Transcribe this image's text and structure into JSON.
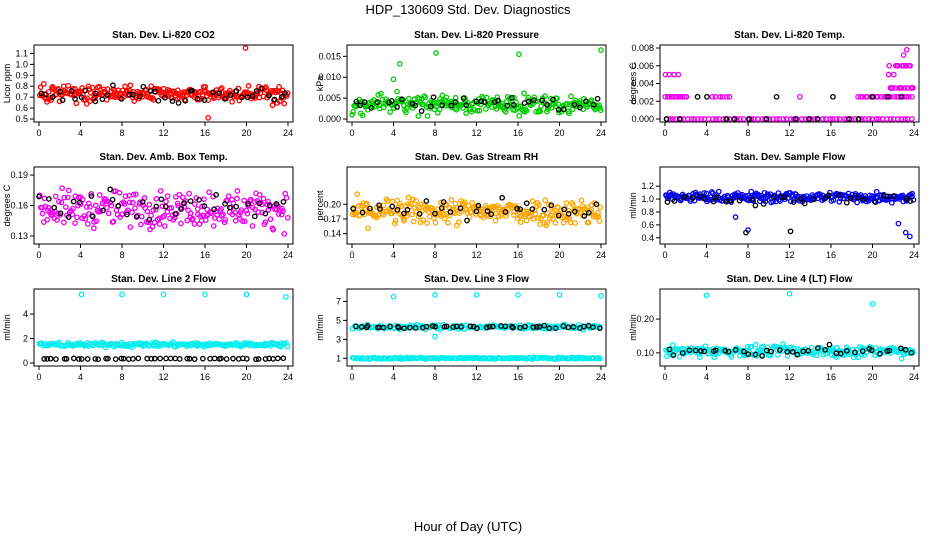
{
  "page": {
    "title": "HDP_130609  Std. Dev. Diagnostics",
    "xlabel": "Hour of Day (UTC)"
  },
  "chart_data": [
    {
      "type": "scatter",
      "title": "Stan. Dev. Li-820 CO2",
      "ylabel": "Licor ppm",
      "xlim": [
        0,
        24
      ],
      "ylim": [
        0.5,
        1.15
      ],
      "xticks": [
        "0",
        "4",
        "8",
        "12",
        "16",
        "20",
        "24"
      ],
      "yticks": [
        {
          "v": 0.5,
          "label": "0.5"
        },
        {
          "v": 0.6,
          "label": "0.6"
        },
        {
          "v": 0.7,
          "label": "0.7"
        },
        {
          "v": 0.8,
          "label": "0.8"
        },
        {
          "v": 0.9,
          "label": "0.9"
        },
        {
          "v": 1.0,
          "label": "1.0"
        },
        {
          "v": 1.1,
          "label": "1.1"
        }
      ],
      "series": [
        {
          "name": "primary",
          "color": "#ff0000",
          "count": 260,
          "y_mean": 0.73,
          "y_spread": 0.13,
          "outliers": [
            {
              "x": 19.9,
              "y": 1.15
            },
            {
              "x": 16.3,
              "y": 0.51
            }
          ]
        },
        {
          "name": "secondary",
          "color": "#000000",
          "count": 44,
          "y_mean": 0.72,
          "y_spread": 0.12,
          "outliers": []
        }
      ]
    },
    {
      "type": "scatter",
      "title": "Stan. Dev. Li-820 Pressure",
      "ylabel": "kPa",
      "xlim": [
        0,
        24
      ],
      "ylim": [
        0,
        0.017
      ],
      "xticks": [
        "0",
        "4",
        "8",
        "12",
        "16",
        "20",
        "24"
      ],
      "yticks": [
        {
          "v": 0,
          "label": "0.000"
        },
        {
          "v": 0.005,
          "label": "0.005"
        },
        {
          "v": 0.01,
          "label": "0.010"
        },
        {
          "v": 0.015,
          "label": "0.015"
        }
      ],
      "series": [
        {
          "name": "primary",
          "color": "#00cc00",
          "count": 260,
          "y_mean": 0.0035,
          "y_spread": 0.0035,
          "outliers": [
            {
              "x": 4.0,
              "y": 0.0095
            },
            {
              "x": 4.6,
              "y": 0.0132
            },
            {
              "x": 8.1,
              "y": 0.0158
            },
            {
              "x": 16.1,
              "y": 0.0155
            },
            {
              "x": 24.0,
              "y": 0.0165
            }
          ]
        },
        {
          "name": "secondary",
          "color": "#000000",
          "count": 40,
          "y_mean": 0.004,
          "y_spread": 0.0035,
          "outliers": []
        }
      ]
    },
    {
      "type": "scatter",
      "title": "Stan. Dev. Li-820 Temp.",
      "ylabel": "degrees C",
      "xlim": [
        0,
        24
      ],
      "ylim": [
        0,
        0.008
      ],
      "xticks": [
        "0",
        "4",
        "8",
        "12",
        "16",
        "20",
        "24"
      ],
      "yticks": [
        {
          "v": 0,
          "label": "0.000"
        },
        {
          "v": 0.002,
          "label": "0.002"
        },
        {
          "v": 0.004,
          "label": "0.004"
        },
        {
          "v": 0.006,
          "label": "0.006"
        },
        {
          "v": 0.008,
          "label": "0.008"
        }
      ],
      "series": [
        {
          "name": "baseline",
          "color": "#ee00ee",
          "levels": [
            0
          ],
          "x_range": [
            0,
            24
          ],
          "count": 70
        },
        {
          "name": "step-0.0025",
          "color": "#ee00ee",
          "levels": [
            0.0025
          ],
          "x_range": [
            0,
            2.2
          ],
          "count": 12
        },
        {
          "name": "step-0.0025-mid",
          "color": "#ee00ee",
          "levels": [
            0.0025
          ],
          "x_range": [
            4.5,
            6.5
          ],
          "count": 6
        },
        {
          "name": "step-0.0025-late",
          "color": "#ee00ee",
          "levels": [
            0.0025
          ],
          "x_range": [
            18.5,
            24
          ],
          "count": 22
        },
        {
          "name": "steps-high",
          "color": "#ee00ee",
          "levels": [
            0.0035,
            0.005,
            0.006
          ],
          "x_range": [
            21.5,
            24
          ],
          "count": 24
        },
        {
          "name": "step-0.005-early",
          "color": "#ee00ee",
          "levels": [
            0.005
          ],
          "x_range": [
            0,
            1.5
          ],
          "count": 4
        },
        {
          "name": "secondary",
          "color": "#000000",
          "levels": [
            0,
            0.0025
          ],
          "x_range": [
            0,
            24
          ],
          "count": 18
        },
        {
          "name": "outliers",
          "color": "#ee00ee",
          "points": [
            {
              "x": 23.0,
              "y": 0.0072
            },
            {
              "x": 23.3,
              "y": 0.0078
            },
            {
              "x": 13.0,
              "y": 0.0025
            }
          ]
        }
      ]
    },
    {
      "type": "scatter",
      "title": "Stan. Dev. Amb. Box Temp.",
      "ylabel": "degrees C",
      "xlim": [
        0,
        24
      ],
      "ylim": [
        0.125,
        0.195
      ],
      "xticks": [
        "0",
        "4",
        "8",
        "12",
        "16",
        "20",
        "24"
      ],
      "yticks": [
        {
          "v": 0.13,
          "label": "0.13"
        },
        {
          "v": 0.16,
          "label": "0.16"
        },
        {
          "v": 0.19,
          "label": "0.19"
        }
      ],
      "series": [
        {
          "name": "primary",
          "color": "#ee00ee",
          "count": 240,
          "y_mean": 0.157,
          "y_spread": 0.03,
          "outliers": []
        },
        {
          "name": "secondary",
          "color": "#000000",
          "count": 38,
          "y_mean": 0.158,
          "y_spread": 0.028,
          "outliers": []
        }
      ]
    },
    {
      "type": "scatter",
      "title": "Stan. Dev. Gas Stream RH",
      "ylabel": "percent",
      "xlim": [
        0,
        24
      ],
      "ylim": [
        0.125,
        0.27
      ],
      "xticks": [
        "0",
        "4",
        "8",
        "12",
        "16",
        "20",
        "24"
      ],
      "yticks": [
        {
          "v": 0.14,
          "label": "0.14"
        },
        {
          "v": 0.17,
          "label": "0.17"
        },
        {
          "v": 0.2,
          "label": "0.20"
        }
      ],
      "series": [
        {
          "name": "primary",
          "color": "#ffa500",
          "count": 260,
          "y_mean": 0.185,
          "y_spread": 0.045,
          "outliers": []
        },
        {
          "name": "secondary",
          "color": "#000000",
          "count": 36,
          "y_mean": 0.19,
          "y_spread": 0.04,
          "outliers": []
        }
      ]
    },
    {
      "type": "scatter",
      "title": "Stan. Dev. Sample Flow",
      "ylabel": "ml/min",
      "xlim": [
        0,
        24
      ],
      "ylim": [
        0.35,
        1.45
      ],
      "xticks": [
        "0",
        "4",
        "8",
        "12",
        "16",
        "20",
        "24"
      ],
      "yticks": [
        {
          "v": 0.4,
          "label": "0.4"
        },
        {
          "v": 0.6,
          "label": "0.6"
        },
        {
          "v": 0.8,
          "label": "0.8"
        },
        {
          "v": 1.0,
          "label": "1.0"
        },
        {
          "v": 1.2,
          "label": "1.2"
        }
      ],
      "series": [
        {
          "name": "primary",
          "color": "#0000ee",
          "count": 250,
          "y_mean": 1.03,
          "y_spread": 0.14,
          "outliers": [
            {
              "x": 8.0,
              "y": 0.52
            },
            {
              "x": 23.2,
              "y": 0.48
            },
            {
              "x": 23.6,
              "y": 0.42
            },
            {
              "x": 22.5,
              "y": 0.62
            },
            {
              "x": 6.8,
              "y": 0.72
            }
          ]
        },
        {
          "name": "secondary",
          "color": "#000000",
          "count": 34,
          "y_mean": 1.0,
          "y_spread": 0.14,
          "outliers": [
            {
              "x": 12.1,
              "y": 0.5
            },
            {
              "x": 7.8,
              "y": 0.48
            }
          ]
        }
      ]
    },
    {
      "type": "scatter",
      "title": "Stan. Dev. Line 2 Flow",
      "ylabel": "ml/min",
      "xlim": [
        0,
        24
      ],
      "ylim": [
        0,
        5.8
      ],
      "xticks": [
        "0",
        "4",
        "8",
        "12",
        "16",
        "20",
        "24"
      ],
      "yticks": [
        {
          "v": 0,
          "label": "0"
        },
        {
          "v": 2,
          "label": "2"
        },
        {
          "v": 4,
          "label": "4"
        }
      ],
      "series": [
        {
          "name": "primary",
          "color": "#00eeee",
          "count": 200,
          "y_mean": 1.5,
          "y_spread": 0.3,
          "outliers": [
            {
              "x": 4.1,
              "y": 5.6
            },
            {
              "x": 8.0,
              "y": 5.6
            },
            {
              "x": 12.0,
              "y": 5.6
            },
            {
              "x": 16.0,
              "y": 5.6
            },
            {
              "x": 20.0,
              "y": 5.6
            },
            {
              "x": 23.8,
              "y": 5.4
            }
          ]
        },
        {
          "name": "secondary",
          "color": "#000000",
          "count": 48,
          "y_mean": 0.35,
          "y_spread": 0.08,
          "outliers": []
        }
      ]
    },
    {
      "type": "scatter",
      "title": "Stan. Dev. Line 3 Flow",
      "ylabel": "ml/min",
      "xlim": [
        0,
        24
      ],
      "ylim": [
        0.5,
        8
      ],
      "xticks": [
        "0",
        "4",
        "8",
        "12",
        "16",
        "20",
        "24"
      ],
      "yticks": [
        {
          "v": 1,
          "label": "1"
        },
        {
          "v": 3,
          "label": "3"
        },
        {
          "v": 5,
          "label": "5"
        },
        {
          "v": 7,
          "label": "7"
        }
      ],
      "series": [
        {
          "name": "primary-high",
          "color": "#00eeee",
          "count": 160,
          "y_mean": 4.3,
          "y_spread": 0.4,
          "outliers": [
            {
              "x": 4.0,
              "y": 7.5
            },
            {
              "x": 8.0,
              "y": 7.7
            },
            {
              "x": 12.0,
              "y": 7.7
            },
            {
              "x": 16.0,
              "y": 7.7
            },
            {
              "x": 20.0,
              "y": 7.7
            },
            {
              "x": 24.0,
              "y": 7.6
            },
            {
              "x": 8.0,
              "y": 3.3
            }
          ]
        },
        {
          "name": "primary-low",
          "color": "#00eeee",
          "count": 170,
          "y_mean": 1.0,
          "y_spread": 0.15,
          "outliers": []
        },
        {
          "name": "secondary",
          "color": "#000000",
          "count": 48,
          "y_mean": 4.3,
          "y_spread": 0.25,
          "outliers": []
        }
      ]
    },
    {
      "type": "scatter",
      "title": "Stan. Dev. Line 4 (LT) Flow",
      "ylabel": "ml/min",
      "xlim": [
        0,
        24
      ],
      "ylim": [
        0.07,
        0.28
      ],
      "xticks": [
        "0",
        "4",
        "8",
        "12",
        "16",
        "20",
        "24"
      ],
      "yticks": [
        {
          "v": 0.1,
          "label": "0.10"
        },
        {
          "v": 0.2,
          "label": "0.20"
        }
      ],
      "series": [
        {
          "name": "primary",
          "color": "#00eeee",
          "count": 230,
          "y_mean": 0.105,
          "y_spread": 0.028,
          "outliers": [
            {
              "x": 4.0,
              "y": 0.27
            },
            {
              "x": 12.0,
              "y": 0.275
            },
            {
              "x": 20.0,
              "y": 0.245
            }
          ]
        },
        {
          "name": "secondary",
          "color": "#000000",
          "count": 40,
          "y_mean": 0.105,
          "y_spread": 0.025,
          "outliers": []
        }
      ]
    }
  ]
}
